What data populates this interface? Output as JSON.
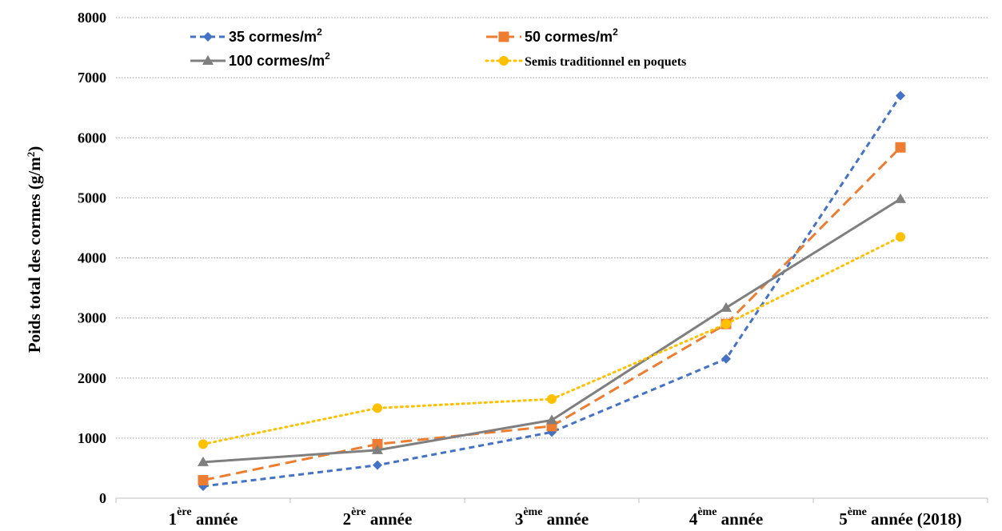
{
  "chart_data": {
    "type": "line",
    "ylabel": "Poids total des cormes",
    "ylabel_unit": "(g/m",
    "ylabel_unit_sup": "2",
    "ylabel_unit_close": ")",
    "ylim": [
      0,
      8000
    ],
    "yticks": [
      0,
      1000,
      2000,
      3000,
      4000,
      5000,
      6000,
      7000,
      8000
    ],
    "grid": "horizontal dotted",
    "legend_position": "top",
    "categories": [
      {
        "num": "1",
        "sup": "ère",
        "text": "année"
      },
      {
        "num": "2",
        "sup": "ère",
        "text": "année"
      },
      {
        "num": "3",
        "sup": "ème",
        "text": "année"
      },
      {
        "num": "4",
        "sup": "ème",
        "text": "année"
      },
      {
        "num": "5",
        "sup": "ème",
        "text": "année (2018)"
      }
    ],
    "series": [
      {
        "name": "35 cormes/m",
        "name_sup": "2",
        "color": "#4472C4",
        "dash": "dashed",
        "marker": "diamond",
        "values": [
          200,
          550,
          1100,
          2320,
          6700
        ]
      },
      {
        "name": "50 cormes/m",
        "name_sup": "2",
        "color": "#ED7D31",
        "dash": "long-dash",
        "marker": "square",
        "values": [
          300,
          900,
          1200,
          2900,
          5840
        ]
      },
      {
        "name": "100 cormes/m",
        "name_sup": "2",
        "color": "#7F7F7F",
        "dash": "solid",
        "marker": "triangle",
        "values": [
          600,
          800,
          1300,
          3170,
          4980
        ]
      },
      {
        "name": "Semis traditionnel en poquets",
        "name_sup": "",
        "color": "#FFC000",
        "dash": "dotted",
        "marker": "circle",
        "values": [
          900,
          1500,
          1650,
          2900,
          4350
        ]
      }
    ]
  }
}
